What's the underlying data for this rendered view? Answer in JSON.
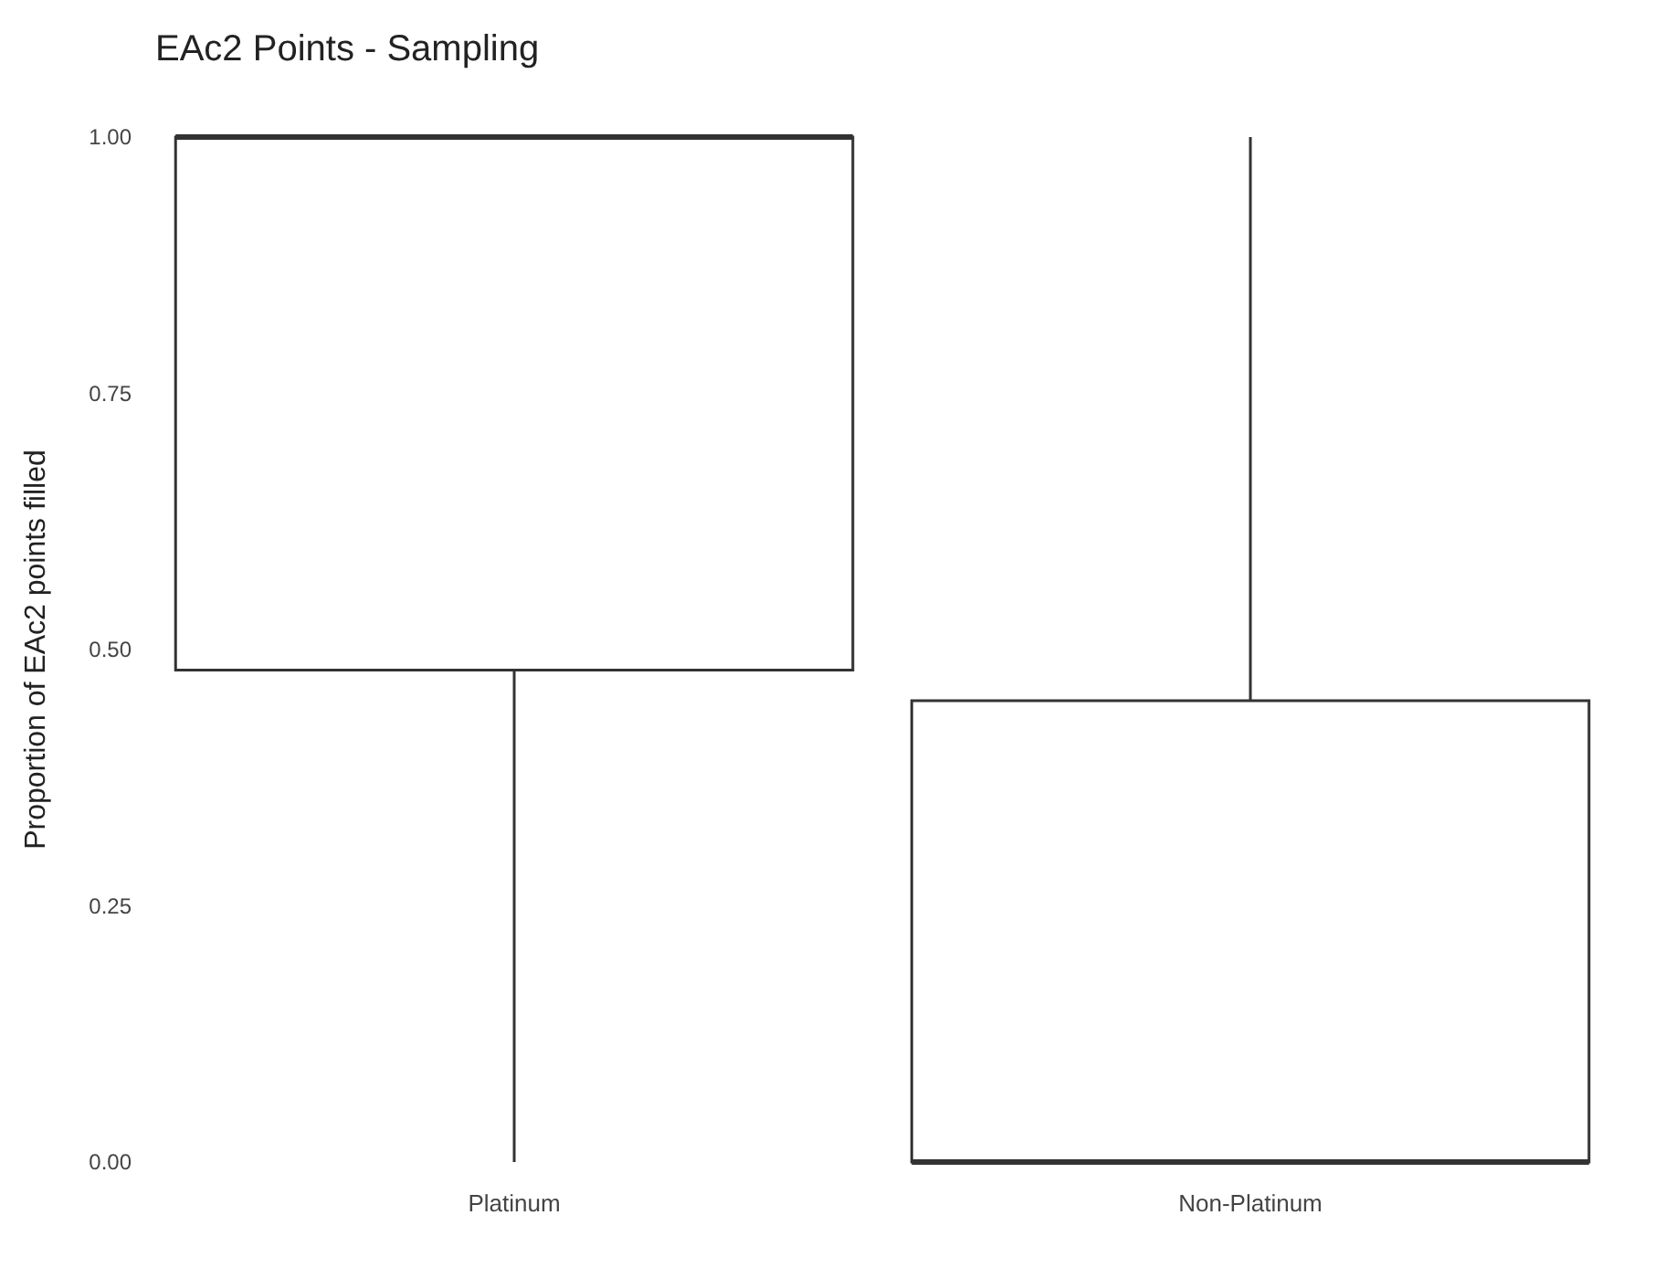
{
  "chart_data": {
    "type": "box",
    "title": "EAc2 Points - Sampling",
    "ylabel": "Proportion of EAc2 points filled",
    "categories": [
      "Platinum",
      "Non-Platinum"
    ],
    "boxes": [
      {
        "low": 0,
        "q1": 0.48,
        "median": 1.0,
        "q3": 1.0,
        "high": 1.0
      },
      {
        "low": 0,
        "q1": 0,
        "median": 0,
        "q3": 0.45,
        "high": 1.0
      }
    ],
    "color": "#333333",
    "ylim": [
      0,
      1
    ],
    "yticks": [
      {
        "value": 0,
        "label": "0.00"
      },
      {
        "value": 0.25,
        "label": "0.25"
      },
      {
        "value": 0.5,
        "label": "0.50"
      },
      {
        "value": 0.75,
        "label": "0.75"
      },
      {
        "value": 1,
        "label": "1.00"
      }
    ],
    "grid": false
  }
}
